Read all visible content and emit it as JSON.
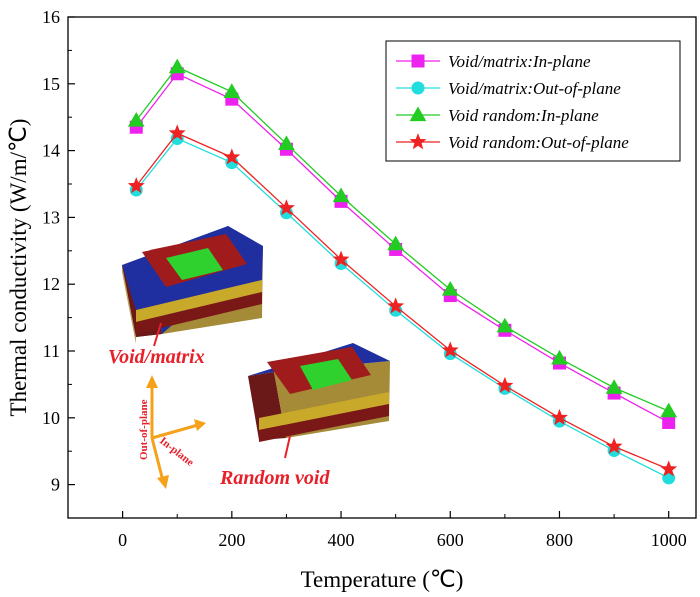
{
  "chart_data": {
    "type": "line",
    "xlabel": "Temperature (℃)",
    "ylabel": "Thermal conductivity (W/m/℃)",
    "xlim": [
      -100,
      1050
    ],
    "ylim": [
      8.5,
      16
    ],
    "xticks": [
      0,
      200,
      400,
      600,
      800,
      1000
    ],
    "yticks": [
      9,
      10,
      11,
      12,
      13,
      14,
      15,
      16
    ],
    "legend_position": "top-right",
    "x": [
      25,
      100,
      200,
      300,
      400,
      500,
      600,
      700,
      800,
      900,
      1000
    ],
    "series": [
      {
        "name": "Void/matrix:In-plane",
        "color": "#ee22ee",
        "marker": "square",
        "values": [
          14.35,
          15.15,
          14.77,
          14.02,
          13.24,
          12.52,
          11.83,
          11.31,
          10.82,
          10.37,
          9.93
        ]
      },
      {
        "name": "Void/matrix:Out-of-plane",
        "color": "#22dddd",
        "marker": "circle",
        "values": [
          13.41,
          14.18,
          13.82,
          13.07,
          12.31,
          11.61,
          10.96,
          10.44,
          9.95,
          9.51,
          9.1
        ]
      },
      {
        "name": "Void random:In-plane",
        "color": "#22cc22",
        "marker": "triangle",
        "values": [
          14.45,
          15.25,
          14.88,
          14.1,
          13.32,
          12.6,
          11.92,
          11.37,
          10.89,
          10.45,
          10.1
        ]
      },
      {
        "name": "Void random:Out-of-plane",
        "color": "#ee2222",
        "marker": "star",
        "values": [
          13.47,
          14.26,
          13.9,
          13.14,
          12.37,
          11.67,
          11.01,
          10.48,
          10.0,
          9.57,
          9.23
        ]
      }
    ]
  },
  "annotations": {
    "model1_label": "Void/matrix",
    "model2_label": "Random void",
    "direction_out": "Out-of-plane",
    "direction_in": "In-plane"
  },
  "colors": {
    "insert_blue": "#1f2fa0",
    "insert_red": "#a01c1c",
    "insert_green": "#2fd12f",
    "insert_yellow": "#c9a92a",
    "arrow_orange": "#f5a11a",
    "annotation_red": "#e8202a"
  }
}
